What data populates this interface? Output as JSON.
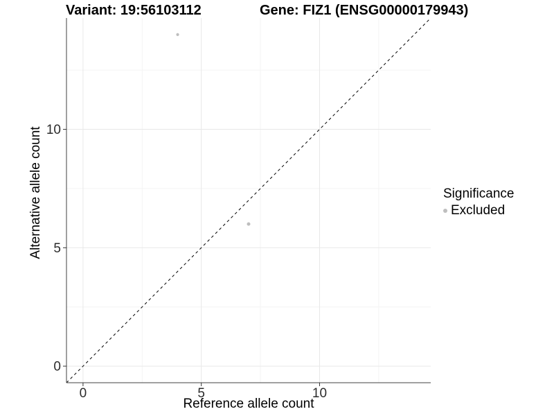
{
  "chart_data": {
    "type": "scatter",
    "title": "Variant: 19:56103112   Gene: FIZ1 (ENSG00000179943)",
    "title_left": "Variant: 19:56103112",
    "title_right": "Gene: FIZ1 (ENSG00000179943)",
    "xlabel": "Reference allele count",
    "ylabel": "Alternative allele count",
    "xlim": [
      -0.7,
      14.7
    ],
    "ylim": [
      -0.7,
      14.7
    ],
    "x_major_ticks": [
      0,
      5,
      10
    ],
    "y_major_ticks": [
      0,
      5,
      10
    ],
    "x_minor_ticks": [
      2.5,
      7.5,
      12.5
    ],
    "y_minor_ticks": [
      2.5,
      7.5,
      12.5
    ],
    "grid": true,
    "abline": {
      "slope": 1,
      "intercept": 0,
      "style": "dashed"
    },
    "series": [
      {
        "name": "Excluded",
        "points": [
          {
            "x": 4,
            "y": 14,
            "r": 2.1
          },
          {
            "x": 7,
            "y": 6,
            "r": 2.5
          }
        ]
      }
    ],
    "legend": {
      "title": "Significance",
      "position": "right",
      "items": [
        {
          "label": "Excluded",
          "color": "#bebebe"
        }
      ]
    },
    "colors": {
      "point": "#bebebe",
      "grid_major": "#e8e8e8",
      "grid_minor": "#f4f4f4",
      "axis_line": "#404040",
      "tick_mark": "#333333",
      "tick_label": "#2b2b2b",
      "abline": "#000000",
      "background": "#ffffff"
    }
  }
}
